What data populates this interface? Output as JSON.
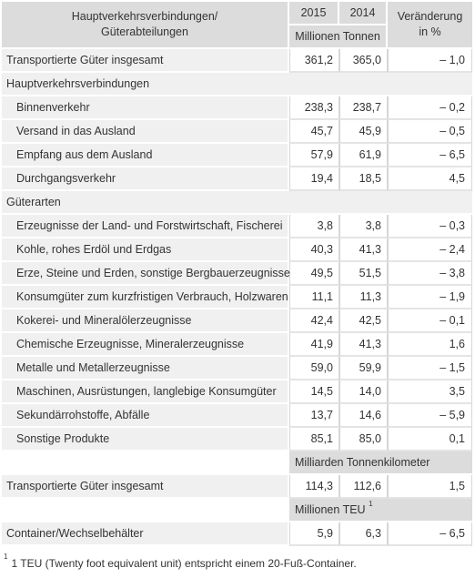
{
  "header": {
    "col1_line1": "Hauptverkehrsverbindungen/",
    "col1_line2": "Güterabteilungen",
    "year1": "2015",
    "year2": "2014",
    "change_line1": "Veränderung",
    "change_line2": "in %",
    "unit": "Millionen Tonnen"
  },
  "total_tonnes": {
    "label": "Transportierte Güter insgesamt",
    "v2015": "361,2",
    "v2014": "365,0",
    "change": "– 1,0"
  },
  "section_connections": "Hauptverkehrsverbindungen",
  "connections": [
    {
      "label": "Binnenverkehr",
      "v2015": "238,3",
      "v2014": "238,7",
      "change": "– 0,2"
    },
    {
      "label": "Versand in das Ausland",
      "v2015": "45,7",
      "v2014": "45,9",
      "change": "– 0,5"
    },
    {
      "label": "Empfang aus dem Ausland",
      "v2015": "57,9",
      "v2014": "61,9",
      "change": "– 6,5"
    },
    {
      "label": "Durchgangsverkehr",
      "v2015": "19,4",
      "v2014": "18,5",
      "change": "4,5"
    }
  ],
  "section_goods": "Güterarten",
  "goods": [
    {
      "label": "Erzeugnisse der Land- und Forstwirtschaft, Fischerei",
      "v2015": "3,8",
      "v2014": "3,8",
      "change": "– 0,3"
    },
    {
      "label": "Kohle, rohes Erdöl und Erdgas",
      "v2015": "40,3",
      "v2014": "41,3",
      "change": "– 2,4"
    },
    {
      "label": "Erze, Steine und Erden, sonstige Bergbauerzeugnisse",
      "v2015": "49,5",
      "v2014": "51,5",
      "change": "– 3,8"
    },
    {
      "label": "Konsumgüter zum kurzfristigen Verbrauch, Holzwaren",
      "v2015": "11,1",
      "v2014": "11,3",
      "change": "– 1,9"
    },
    {
      "label": "Kokerei- und Mineralölerzeugnisse",
      "v2015": "42,4",
      "v2014": "42,5",
      "change": "– 0,1"
    },
    {
      "label": "Chemische Erzeugnisse, Mineralerzeugnisse",
      "v2015": "41,9",
      "v2014": "41,3",
      "change": "1,6"
    },
    {
      "label": "Metalle und Metallerzeugnisse",
      "v2015": "59,0",
      "v2014": "59,9",
      "change": "– 1,5"
    },
    {
      "label": "Maschinen, Ausrüstungen, langlebige Konsumgüter",
      "v2015": "14,5",
      "v2014": "14,0",
      "change": "3,5"
    },
    {
      "label": "Sekundärrohstoffe, Abfälle",
      "v2015": "13,7",
      "v2014": "14,6",
      "change": "– 5,9"
    },
    {
      "label": "Sonstige Produkte",
      "v2015": "85,1",
      "v2014": "85,0",
      "change": "0,1"
    }
  ],
  "unit_tkm": "Milliarden Tonnenkilometer",
  "total_tkm": {
    "label": "Transportierte Güter insgesamt",
    "v2015": "114,3",
    "v2014": "112,6",
    "change": "1,5"
  },
  "unit_teu": "Millionen TEU",
  "unit_teu_sup": "1",
  "container": {
    "label": "Container/Wechselbehälter",
    "v2015": "5,9",
    "v2014": "6,3",
    "change": "– 6,5"
  },
  "footnote": {
    "marker": "1",
    "text": "1 TEU (Twenty foot equivalent unit) entspricht einem 20-Fuß-Container."
  }
}
